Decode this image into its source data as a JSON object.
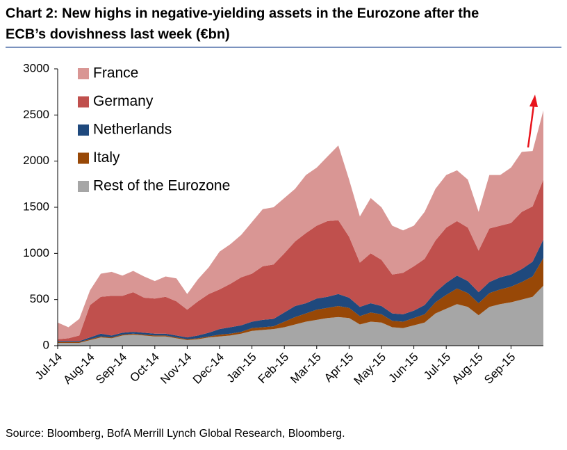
{
  "chart_data": {
    "type": "stacked_area",
    "title": "Chart 2: New highs in negative-yielding assets in the Eurozone after the",
    "subtitle": "ECB’s dovishness last week (€bn)",
    "source": "Source: Bloomberg, BofA Merrill Lynch Global Research, Bloomberg.",
    "categories": [
      "Jul-14",
      null,
      null,
      "Aug-14",
      null,
      null,
      "Sep-14",
      null,
      null,
      "Oct-14",
      null,
      null,
      "Nov-14",
      null,
      null,
      "Dec-14",
      null,
      null,
      "Jan-15",
      null,
      null,
      "Feb-15",
      null,
      null,
      "Mar-15",
      null,
      null,
      "Apr-15",
      null,
      null,
      "May-15",
      null,
      null,
      "Jun-15",
      null,
      null,
      "Jul-15",
      null,
      null,
      "Aug-15",
      null,
      null,
      "Sep-15",
      null,
      null,
      null
    ],
    "series": [
      {
        "name": "France",
        "color": "#d99694",
        "values": [
          180,
          120,
          180,
          160,
          250,
          260,
          220,
          230,
          230,
          190,
          220,
          250,
          170,
          240,
          290,
          410,
          430,
          460,
          560,
          620,
          620,
          600,
          570,
          630,
          630,
          700,
          810,
          620,
          500,
          600,
          570,
          530,
          460,
          440,
          510,
          560,
          570,
          550,
          520,
          420,
          580,
          550,
          600,
          650,
          600,
          750
        ]
      },
      {
        "name": "Germany",
        "color": "#c0504d",
        "values": [
          20,
          30,
          60,
          350,
          400,
          430,
          400,
          430,
          380,
          380,
          400,
          370,
          300,
          370,
          420,
          430,
          470,
          520,
          520,
          580,
          590,
          640,
          700,
          760,
          790,
          820,
          800,
          660,
          480,
          540,
          500,
          420,
          450,
          480,
          500,
          560,
          600,
          590,
          580,
          450,
          580,
          560,
          560,
          620,
          600,
          650
        ]
      },
      {
        "name": "Netherlands",
        "color": "#1f497d",
        "values": [
          10,
          10,
          10,
          20,
          30,
          20,
          20,
          20,
          20,
          20,
          20,
          20,
          20,
          30,
          40,
          60,
          70,
          70,
          70,
          80,
          80,
          100,
          120,
          110,
          120,
          120,
          130,
          110,
          100,
          100,
          90,
          80,
          80,
          80,
          100,
          110,
          130,
          140,
          130,
          120,
          120,
          130,
          130,
          140,
          160,
          200
        ]
      },
      {
        "name": "Italy",
        "color": "#984807",
        "values": [
          10,
          10,
          10,
          10,
          10,
          10,
          10,
          10,
          10,
          10,
          10,
          10,
          10,
          10,
          10,
          20,
          20,
          20,
          30,
          30,
          30,
          60,
          80,
          90,
          110,
          110,
          120,
          110,
          90,
          100,
          90,
          70,
          70,
          80,
          90,
          120,
          150,
          170,
          150,
          130,
          150,
          160,
          170,
          190,
          220,
          300
        ]
      },
      {
        "name": "Rest of the Eurozone",
        "color": "#a6a6a6",
        "values": [
          30,
          30,
          30,
          60,
          90,
          80,
          110,
          120,
          110,
          100,
          100,
          80,
          60,
          70,
          90,
          100,
          110,
          130,
          160,
          170,
          180,
          200,
          230,
          260,
          280,
          300,
          310,
          300,
          230,
          260,
          250,
          200,
          190,
          220,
          250,
          350,
          400,
          450,
          420,
          330,
          420,
          450,
          470,
          500,
          530,
          650
        ]
      }
    ],
    "ylim": [
      0,
      3000
    ],
    "yticks": [
      0,
      500,
      1000,
      1500,
      2000,
      2500,
      3000
    ],
    "grid": false,
    "legend": "top-left"
  }
}
